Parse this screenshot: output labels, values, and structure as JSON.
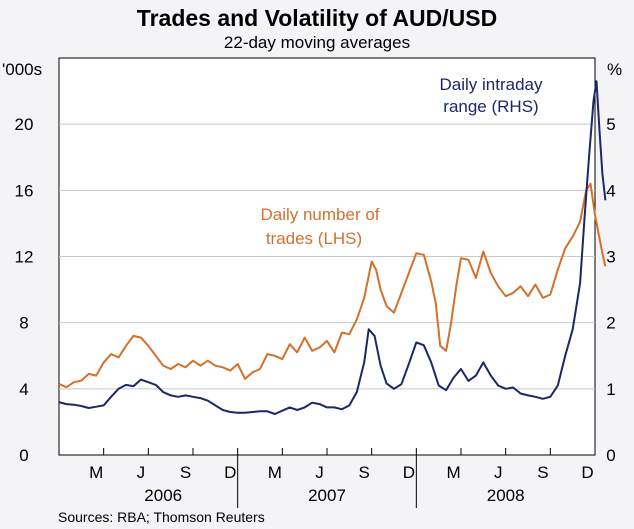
{
  "chart_data": {
    "type": "line",
    "title": "Trades and Volatility of AUD/USD",
    "subtitle": "22-day moving averages",
    "source": "Sources: RBA; Thomson Reuters",
    "left_axis": {
      "unit": "'000s",
      "ylim": [
        0,
        24
      ],
      "ticks": [
        "0",
        "4",
        "8",
        "12",
        "16",
        "20"
      ],
      "tick_values": [
        0,
        4,
        8,
        12,
        16,
        20
      ]
    },
    "right_axis": {
      "unit": "%",
      "ylim": [
        0,
        6
      ],
      "ticks": [
        "0",
        "1",
        "2",
        "3",
        "4",
        "5"
      ],
      "tick_values": [
        0,
        1,
        2,
        3,
        4,
        5
      ]
    },
    "x_range": [
      0,
      35
    ],
    "month_labels": [
      {
        "label": "M",
        "x": 2.5
      },
      {
        "label": "J",
        "x": 5.5
      },
      {
        "label": "S",
        "x": 8.5
      },
      {
        "label": "D",
        "x": 11.5
      },
      {
        "label": "M",
        "x": 14.5
      },
      {
        "label": "J",
        "x": 17.5
      },
      {
        "label": "S",
        "x": 20.5
      },
      {
        "label": "D",
        "x": 23.5
      },
      {
        "label": "M",
        "x": 26.5
      },
      {
        "label": "J",
        "x": 29.5
      },
      {
        "label": "S",
        "x": 32.5
      },
      {
        "label": "D",
        "x": 35.5
      }
    ],
    "quarter_boundaries": [
      3,
      6,
      9,
      12,
      15,
      18,
      21,
      24,
      27,
      30,
      33
    ],
    "year_labels": [
      {
        "label": "2006",
        "x": 7.0
      },
      {
        "label": "2007",
        "x": 18.0
      },
      {
        "label": "2008",
        "x": 30.0
      }
    ],
    "series": [
      {
        "name": "Daily number of trades (LHS)",
        "label_lines": [
          "Daily number of",
          "trades (LHS)"
        ],
        "color": "#d4702c",
        "axis": "left",
        "points": [
          [
            0,
            4.3
          ],
          [
            0.5,
            4.1
          ],
          [
            1,
            4.4
          ],
          [
            1.5,
            4.5
          ],
          [
            2,
            4.9
          ],
          [
            2.5,
            4.8
          ],
          [
            3,
            5.6
          ],
          [
            3.5,
            6.1
          ],
          [
            4,
            5.9
          ],
          [
            4.5,
            6.6
          ],
          [
            5,
            7.2
          ],
          [
            5.5,
            7.1
          ],
          [
            6,
            6.6
          ],
          [
            6.5,
            6.0
          ],
          [
            7,
            5.4
          ],
          [
            7.5,
            5.2
          ],
          [
            8,
            5.5
          ],
          [
            8.5,
            5.3
          ],
          [
            9,
            5.7
          ],
          [
            9.5,
            5.4
          ],
          [
            10,
            5.7
          ],
          [
            10.5,
            5.4
          ],
          [
            11,
            5.3
          ],
          [
            11.5,
            5.1
          ],
          [
            12,
            5.5
          ],
          [
            12.5,
            4.6
          ],
          [
            13,
            5.0
          ],
          [
            13.5,
            5.2
          ],
          [
            14,
            6.1
          ],
          [
            14.5,
            6.0
          ],
          [
            15,
            5.8
          ],
          [
            15.5,
            6.7
          ],
          [
            16,
            6.2
          ],
          [
            16.5,
            7.1
          ],
          [
            17,
            6.3
          ],
          [
            17.5,
            6.5
          ],
          [
            18,
            6.9
          ],
          [
            18.5,
            6.2
          ],
          [
            19,
            7.4
          ],
          [
            19.5,
            7.3
          ],
          [
            20,
            8.2
          ],
          [
            20.5,
            9.5
          ],
          [
            21,
            11.7
          ],
          [
            21.3,
            11.2
          ],
          [
            21.6,
            10.0
          ],
          [
            22,
            9.0
          ],
          [
            22.5,
            8.6
          ],
          [
            23,
            9.8
          ],
          [
            23.5,
            11.0
          ],
          [
            24,
            12.2
          ],
          [
            24.5,
            12.1
          ],
          [
            25,
            10.5
          ],
          [
            25.3,
            9.2
          ],
          [
            25.6,
            6.6
          ],
          [
            26,
            6.3
          ],
          [
            26.3,
            7.8
          ],
          [
            26.7,
            10.3
          ],
          [
            27,
            11.9
          ],
          [
            27.5,
            11.8
          ],
          [
            28,
            10.7
          ],
          [
            28.5,
            12.3
          ],
          [
            29,
            11.0
          ],
          [
            29.5,
            10.2
          ],
          [
            30,
            9.6
          ],
          [
            30.5,
            9.8
          ],
          [
            31,
            10.2
          ],
          [
            31.5,
            9.6
          ],
          [
            32,
            10.3
          ],
          [
            32.5,
            9.5
          ],
          [
            33,
            9.7
          ],
          [
            33.5,
            11.2
          ],
          [
            34,
            12.5
          ],
          [
            34.5,
            13.2
          ],
          [
            35,
            14.1
          ],
          [
            35.4,
            16.0
          ],
          [
            35.7,
            16.4
          ],
          [
            36,
            14.5
          ],
          [
            36.3,
            13.1
          ],
          [
            36.5,
            12.2
          ],
          [
            36.7,
            11.4
          ]
        ]
      },
      {
        "name": "Daily intraday range (RHS)",
        "label_lines": [
          "Daily intraday",
          "range (RHS)"
        ],
        "color": "#1b2766",
        "axis": "right",
        "points": [
          [
            0,
            0.8
          ],
          [
            0.5,
            0.77
          ],
          [
            1,
            0.76
          ],
          [
            1.5,
            0.74
          ],
          [
            2,
            0.71
          ],
          [
            2.5,
            0.73
          ],
          [
            3,
            0.75
          ],
          [
            3.5,
            0.88
          ],
          [
            4,
            1.0
          ],
          [
            4.5,
            1.06
          ],
          [
            5,
            1.04
          ],
          [
            5.5,
            1.14
          ],
          [
            6,
            1.1
          ],
          [
            6.5,
            1.06
          ],
          [
            7,
            0.95
          ],
          [
            7.5,
            0.9
          ],
          [
            8,
            0.88
          ],
          [
            8.5,
            0.9
          ],
          [
            9,
            0.88
          ],
          [
            9.5,
            0.86
          ],
          [
            10,
            0.82
          ],
          [
            10.5,
            0.75
          ],
          [
            11,
            0.68
          ],
          [
            11.5,
            0.65
          ],
          [
            12,
            0.64
          ],
          [
            12.5,
            0.64
          ],
          [
            13,
            0.65
          ],
          [
            13.5,
            0.66
          ],
          [
            14,
            0.66
          ],
          [
            14.5,
            0.62
          ],
          [
            15,
            0.67
          ],
          [
            15.5,
            0.72
          ],
          [
            16,
            0.68
          ],
          [
            16.5,
            0.72
          ],
          [
            17,
            0.79
          ],
          [
            17.5,
            0.77
          ],
          [
            18,
            0.72
          ],
          [
            18.5,
            0.72
          ],
          [
            19,
            0.69
          ],
          [
            19.5,
            0.75
          ],
          [
            20,
            0.95
          ],
          [
            20.5,
            1.4
          ],
          [
            20.8,
            1.9
          ],
          [
            21.2,
            1.8
          ],
          [
            21.6,
            1.35
          ],
          [
            22,
            1.08
          ],
          [
            22.5,
            1.0
          ],
          [
            23,
            1.07
          ],
          [
            23.5,
            1.38
          ],
          [
            24,
            1.7
          ],
          [
            24.5,
            1.66
          ],
          [
            25,
            1.4
          ],
          [
            25.5,
            1.05
          ],
          [
            26,
            0.98
          ],
          [
            26.5,
            1.17
          ],
          [
            27,
            1.3
          ],
          [
            27.5,
            1.12
          ],
          [
            28,
            1.2
          ],
          [
            28.5,
            1.4
          ],
          [
            29,
            1.2
          ],
          [
            29.5,
            1.05
          ],
          [
            30,
            1.0
          ],
          [
            30.5,
            1.02
          ],
          [
            31,
            0.93
          ],
          [
            31.5,
            0.9
          ],
          [
            32,
            0.88
          ],
          [
            32.5,
            0.85
          ],
          [
            33,
            0.88
          ],
          [
            33.5,
            1.05
          ],
          [
            34,
            1.5
          ],
          [
            34.5,
            1.9
          ],
          [
            35,
            2.6
          ],
          [
            35.3,
            3.6
          ],
          [
            35.6,
            4.5
          ],
          [
            35.9,
            5.35
          ],
          [
            36.1,
            5.65
          ],
          [
            36.3,
            4.9
          ],
          [
            36.5,
            4.25
          ],
          [
            36.7,
            3.85
          ]
        ]
      }
    ]
  }
}
